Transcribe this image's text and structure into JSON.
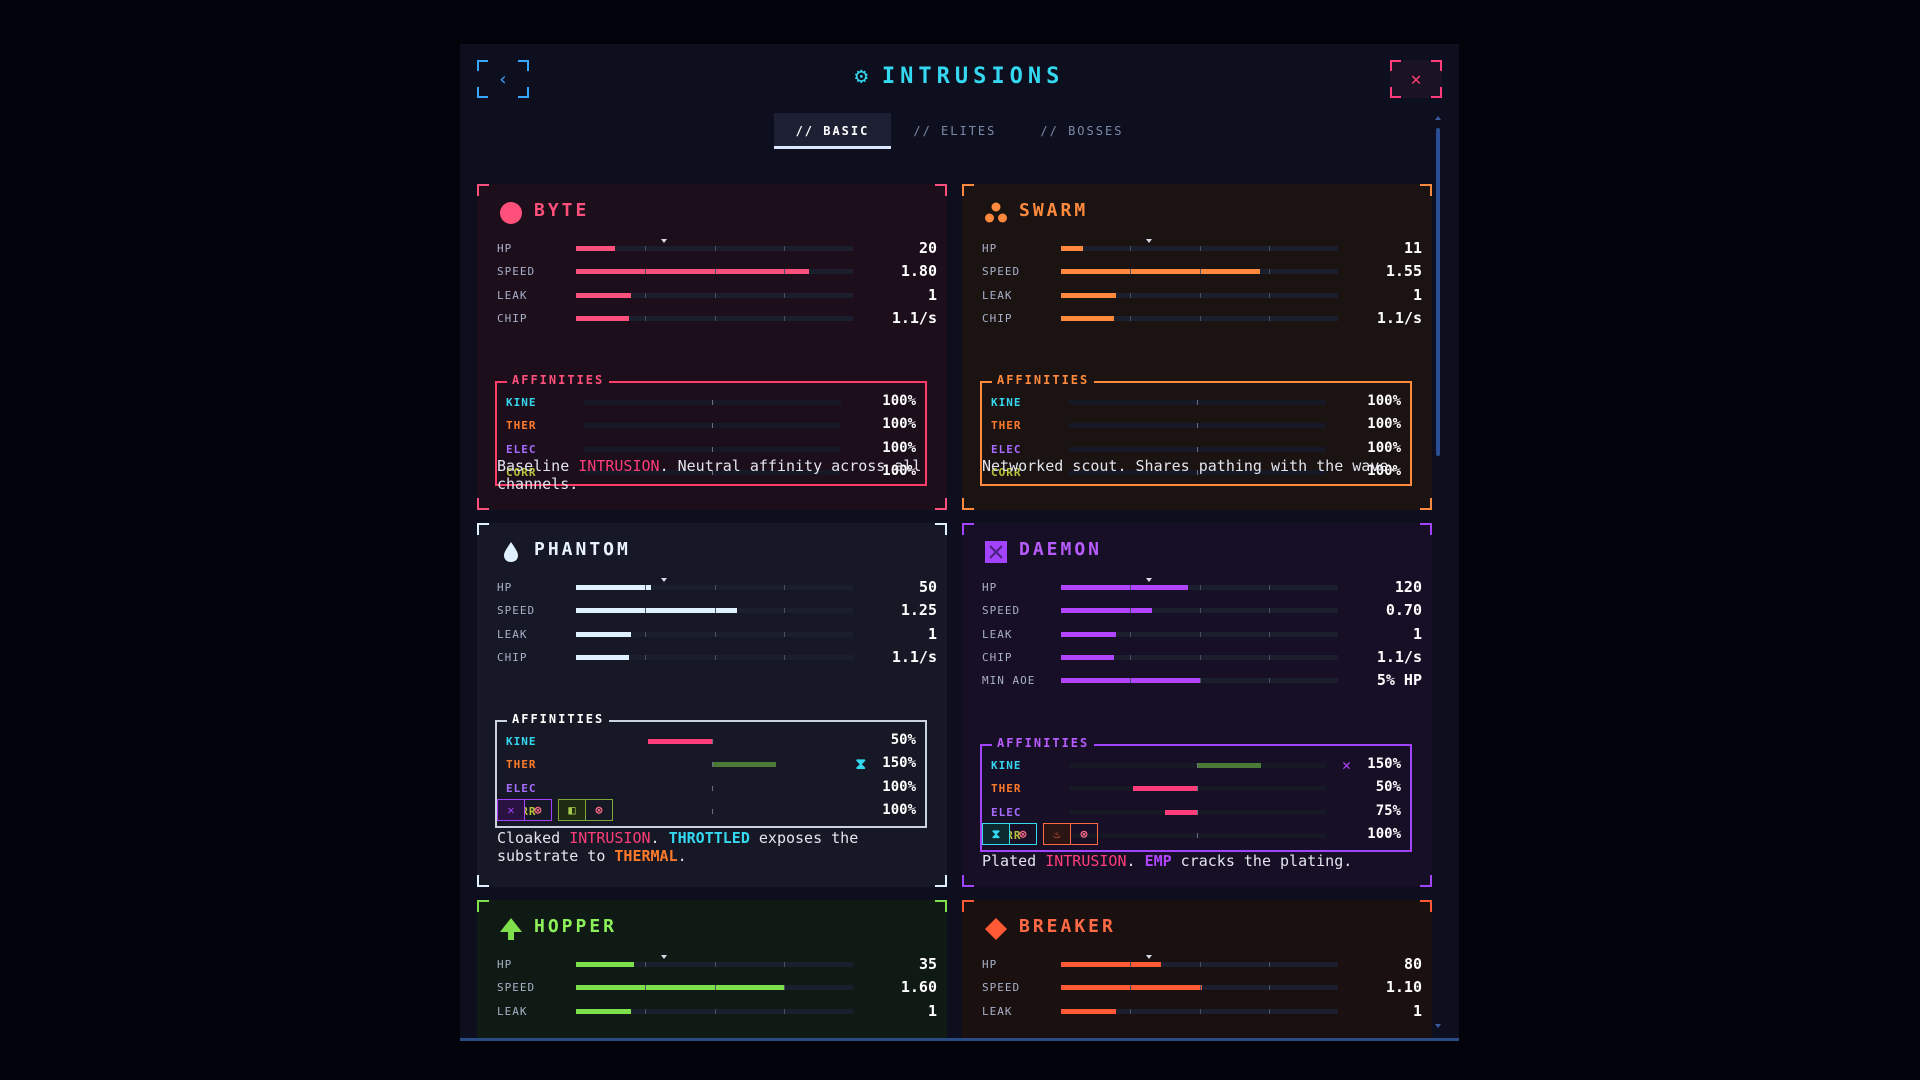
{
  "header": {
    "title": "INTRUSIONS",
    "title_icon": "⚙",
    "back_icon": "‹",
    "close_icon": "✕"
  },
  "tabs": [
    {
      "label": "// BASIC",
      "active": true
    },
    {
      "label": "// ELITES",
      "active": false
    },
    {
      "label": "// BOSSES",
      "active": false
    }
  ],
  "cards": {
    "byte": {
      "name": "BYTE",
      "color": "#ff4f7b",
      "stats": [
        {
          "label": "HP",
          "value": "20",
          "fill": 0.14
        },
        {
          "label": "SPEED",
          "value": "1.80",
          "fill": 0.84
        },
        {
          "label": "LEAK",
          "value": "1",
          "fill": 0.2
        },
        {
          "label": "CHIP",
          "value": "1.1/s",
          "fill": 0.19
        }
      ],
      "affinities_label": "AFFINITIES",
      "affinities": [
        {
          "label": "KINE",
          "value": "100%"
        },
        {
          "label": "THER",
          "value": "100%"
        },
        {
          "label": "ELEC",
          "value": "100%"
        },
        {
          "label": "CORR",
          "value": "100%"
        }
      ],
      "desc": {
        "a": "Baseline ",
        "kw1": "INTRUSION",
        "b": ". Neutral affinity across all channels."
      }
    },
    "swarm": {
      "name": "SWARM",
      "color": "#ff8a3d",
      "stats": [
        {
          "label": "HP",
          "value": "11",
          "fill": 0.08
        },
        {
          "label": "SPEED",
          "value": "1.55",
          "fill": 0.72
        },
        {
          "label": "LEAK",
          "value": "1",
          "fill": 0.2
        },
        {
          "label": "CHIP",
          "value": "1.1/s",
          "fill": 0.19
        }
      ],
      "affinities_label": "AFFINITIES",
      "affinities": [
        {
          "label": "KINE",
          "value": "100%"
        },
        {
          "label": "THER",
          "value": "100%"
        },
        {
          "label": "ELEC",
          "value": "100%"
        },
        {
          "label": "CORR",
          "value": "100%"
        }
      ],
      "desc": {
        "a": "Networked scout. Shares pathing with the wave."
      }
    },
    "phantom": {
      "name": "PHANTOM",
      "color": "#dff0ff",
      "stats": [
        {
          "label": "HP",
          "value": "50",
          "fill": 0.27
        },
        {
          "label": "SPEED",
          "value": "1.25",
          "fill": 0.58
        },
        {
          "label": "LEAK",
          "value": "1",
          "fill": 0.2
        },
        {
          "label": "CHIP",
          "value": "1.1/s",
          "fill": 0.19
        }
      ],
      "affinities_label": "AFFINITIES",
      "affinities": [
        {
          "label": "KINE",
          "value": "50%",
          "mark": ""
        },
        {
          "label": "THER",
          "value": "150%",
          "mark": "⧗"
        },
        {
          "label": "ELEC",
          "value": "100%",
          "mark": ""
        },
        {
          "label": "CORR",
          "value": "100%",
          "mark": ""
        }
      ],
      "tags": [
        [
          "✕",
          "⊗"
        ],
        [
          "◧",
          "⊗"
        ]
      ],
      "desc": {
        "a": "Cloaked ",
        "kw1": "INTRUSION",
        "b": ". ",
        "kw2": "THROTTLED",
        "c": " exposes the substrate to ",
        "kw3": "THERMAL",
        "d": "."
      }
    },
    "daemon": {
      "name": "DAEMON",
      "color": "#b044ff",
      "stats": [
        {
          "label": "HP",
          "value": "120",
          "fill": 0.46
        },
        {
          "label": "SPEED",
          "value": "0.70",
          "fill": 0.33
        },
        {
          "label": "LEAK",
          "value": "1",
          "fill": 0.2
        },
        {
          "label": "CHIP",
          "value": "1.1/s",
          "fill": 0.19
        },
        {
          "label": "MIN AOE",
          "value": "5% HP",
          "fill": 0.5
        }
      ],
      "affinities_label": "AFFINITIES",
      "affinities": [
        {
          "label": "KINE",
          "value": "150%",
          "mark": "✕"
        },
        {
          "label": "THER",
          "value": "50%",
          "mark": ""
        },
        {
          "label": "ELEC",
          "value": "75%",
          "mark": ""
        },
        {
          "label": "CORR",
          "value": "100%",
          "mark": ""
        }
      ],
      "tags": [
        [
          "⧗",
          "⊗"
        ],
        [
          "♨",
          "⊗"
        ]
      ],
      "desc": {
        "a": "Plated ",
        "kw1": "INTRUSION",
        "b": ". ",
        "kw2": "EMP",
        "c": " cracks the plating."
      }
    },
    "hopper": {
      "name": "HOPPER",
      "color": "#7ee04a",
      "stats": [
        {
          "label": "HP",
          "value": "35",
          "fill": 0.21
        },
        {
          "label": "SPEED",
          "value": "1.60",
          "fill": 0.75
        },
        {
          "label": "LEAK",
          "value": "1",
          "fill": 0.2
        }
      ]
    },
    "breaker": {
      "name": "BREAKER",
      "color": "#ff5a35",
      "stats": [
        {
          "label": "HP",
          "value": "80",
          "fill": 0.36
        },
        {
          "label": "SPEED",
          "value": "1.10",
          "fill": 0.51
        },
        {
          "label": "LEAK",
          "value": "1",
          "fill": 0.2
        }
      ]
    }
  }
}
